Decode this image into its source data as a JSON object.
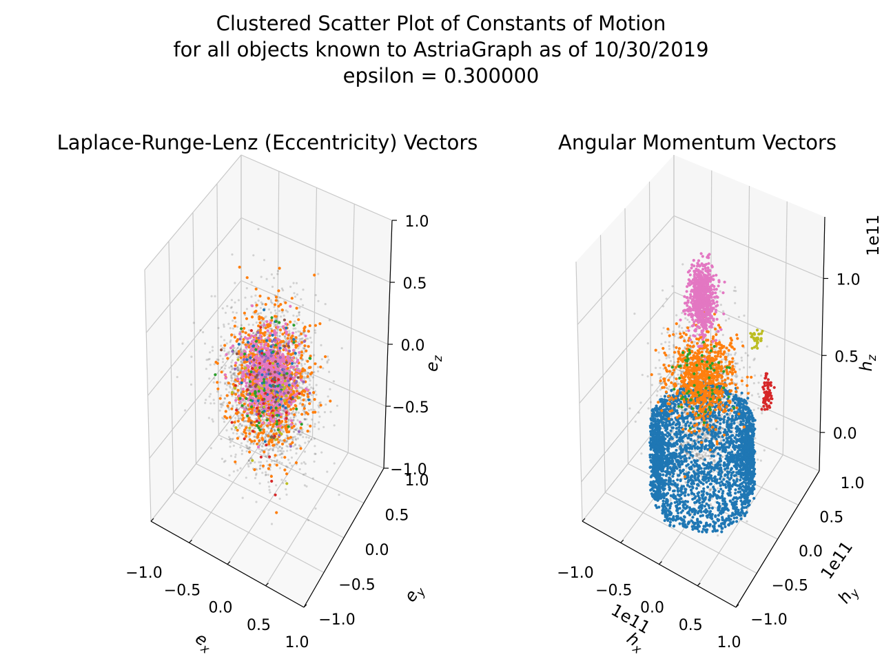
{
  "figure": {
    "title_lines": [
      "Clustered Scatter Plot of Constants of Motion",
      "for all objects known to AstriaGraph as of 10/30/2019",
      "epsilon = 0.300000"
    ]
  },
  "chart_data": [
    {
      "type": "scatter",
      "projection": "3d",
      "title": "Laplace-Runge-Lenz (Eccentricity) Vectors",
      "xlabel": "e_x",
      "ylabel": "e_y",
      "zlabel": "e_z",
      "xlim": [
        -1.0,
        1.0
      ],
      "ylim": [
        -1.0,
        1.0
      ],
      "zlim": [
        -1.0,
        1.0
      ],
      "xticks": [
        "−1.0",
        "−0.5",
        "0.0",
        "0.5",
        "1.0"
      ],
      "yticks": [
        "−1.0",
        "−0.5",
        "0.0",
        "0.5",
        "1.0"
      ],
      "zticks": [
        "−1.0",
        "−0.5",
        "0.0",
        "0.5",
        "1.0"
      ],
      "axis_offset_labels": {
        "x": "",
        "y": "",
        "z": ""
      },
      "grid": true,
      "series": [
        {
          "color": "#000000",
          "alpha": 0.15,
          "count": 2200,
          "center": [
            0.0,
            0.0,
            -0.1
          ],
          "spread": [
            0.55,
            0.5,
            0.55
          ]
        },
        {
          "color": "#ff7f0e",
          "alpha": 1.0,
          "count": 900,
          "center": [
            0.0,
            0.0,
            -0.05
          ],
          "spread": [
            0.45,
            0.42,
            0.5
          ]
        },
        {
          "color": "#e377c2",
          "alpha": 1.0,
          "count": 650,
          "center": [
            0.0,
            0.0,
            0.0
          ],
          "spread": [
            0.32,
            0.3,
            0.28
          ]
        },
        {
          "color": "#1f77b4",
          "alpha": 1.0,
          "count": 60,
          "center": [
            0.0,
            0.0,
            0.0
          ],
          "spread": [
            0.35,
            0.35,
            0.4
          ]
        },
        {
          "color": "#2ca02c",
          "alpha": 1.0,
          "count": 60,
          "center": [
            0.0,
            0.0,
            -0.1
          ],
          "spread": [
            0.4,
            0.4,
            0.45
          ]
        },
        {
          "color": "#9467bd",
          "alpha": 1.0,
          "count": 60,
          "center": [
            0.0,
            0.0,
            0.0
          ],
          "spread": [
            0.35,
            0.35,
            0.35
          ]
        },
        {
          "color": "#d62728",
          "alpha": 1.0,
          "count": 40,
          "center": [
            0.0,
            0.0,
            -0.2
          ],
          "spread": [
            0.4,
            0.4,
            0.45
          ]
        },
        {
          "color": "#bcbd22",
          "alpha": 1.0,
          "count": 30,
          "center": [
            0.0,
            0.0,
            -0.2
          ],
          "spread": [
            0.4,
            0.4,
            0.45
          ]
        },
        {
          "color": "#8c564b",
          "alpha": 1.0,
          "count": 30,
          "center": [
            0.0,
            0.0,
            -0.1
          ],
          "spread": [
            0.4,
            0.4,
            0.4
          ]
        }
      ]
    },
    {
      "type": "scatter",
      "projection": "3d",
      "title": "Angular Momentum Vectors",
      "xlabel": "h_x",
      "ylabel": "h_y",
      "zlabel": "h_z",
      "xlim": [
        -1.0,
        1.0
      ],
      "ylim": [
        -1.0,
        1.0
      ],
      "zlim": [
        -0.25,
        1.4
      ],
      "units": "1e11",
      "xticks": [
        "−1.0",
        "−0.5",
        "0.0",
        "0.5",
        "1.0"
      ],
      "yticks": [
        "−1.0",
        "−0.5",
        "0.0",
        "0.5",
        "1.0"
      ],
      "zticks": [
        "0.0",
        "0.5",
        "1.0"
      ],
      "axis_offset_labels": {
        "x": "1e11",
        "y": "1e11",
        "z": "1e11"
      },
      "grid": true,
      "series": [
        {
          "color": "#000000",
          "alpha": 0.15,
          "count": 1600,
          "center": [
            0.0,
            0.0,
            0.35
          ],
          "spread": [
            0.5,
            0.5,
            0.5
          ]
        },
        {
          "color": "#1f77b4",
          "alpha": 1.0,
          "count": 3000,
          "shape": "rings",
          "radius": 0.55,
          "zrange": [
            -0.2,
            0.25
          ]
        },
        {
          "color": "#ff7f0e",
          "alpha": 1.0,
          "count": 800,
          "center": [
            0.0,
            0.0,
            0.55
          ],
          "spread": [
            0.35,
            0.35,
            0.25
          ]
        },
        {
          "color": "#e377c2",
          "alpha": 1.0,
          "count": 700,
          "center": [
            0.0,
            0.0,
            1.05
          ],
          "spread": [
            0.15,
            0.15,
            0.22
          ]
        },
        {
          "color": "#d62728",
          "alpha": 1.0,
          "count": 70,
          "center": [
            0.75,
            0.2,
            0.55
          ],
          "spread": [
            0.05,
            0.05,
            0.12
          ]
        },
        {
          "color": "#bcbd22",
          "alpha": 1.0,
          "count": 30,
          "center": [
            0.55,
            0.3,
            0.8
          ],
          "spread": [
            0.08,
            0.05,
            0.05
          ]
        },
        {
          "color": "#2ca02c",
          "alpha": 1.0,
          "count": 60,
          "center": [
            0.0,
            0.0,
            0.55
          ],
          "spread": [
            0.35,
            0.35,
            0.3
          ]
        }
      ]
    }
  ]
}
